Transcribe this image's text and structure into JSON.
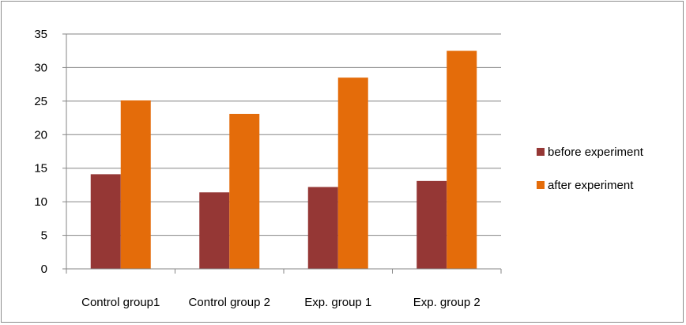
{
  "chart_data": {
    "type": "bar",
    "categories": [
      "Control group1",
      "Control group 2",
      "Exp. group 1",
      "Exp. group 2"
    ],
    "series": [
      {
        "name": "before experiment",
        "values": [
          14.1,
          11.4,
          12.2,
          13.1
        ],
        "color": "#953735"
      },
      {
        "name": "after experiment",
        "values": [
          25.1,
          23.1,
          28.5,
          32.5
        ],
        "color": "#e46c0a"
      }
    ],
    "title": "",
    "xlabel": "",
    "ylabel": "",
    "ylim": [
      0,
      35
    ],
    "yticks": [
      0,
      5,
      10,
      15,
      20,
      25,
      30,
      35
    ],
    "grid": true,
    "legend": "right"
  }
}
